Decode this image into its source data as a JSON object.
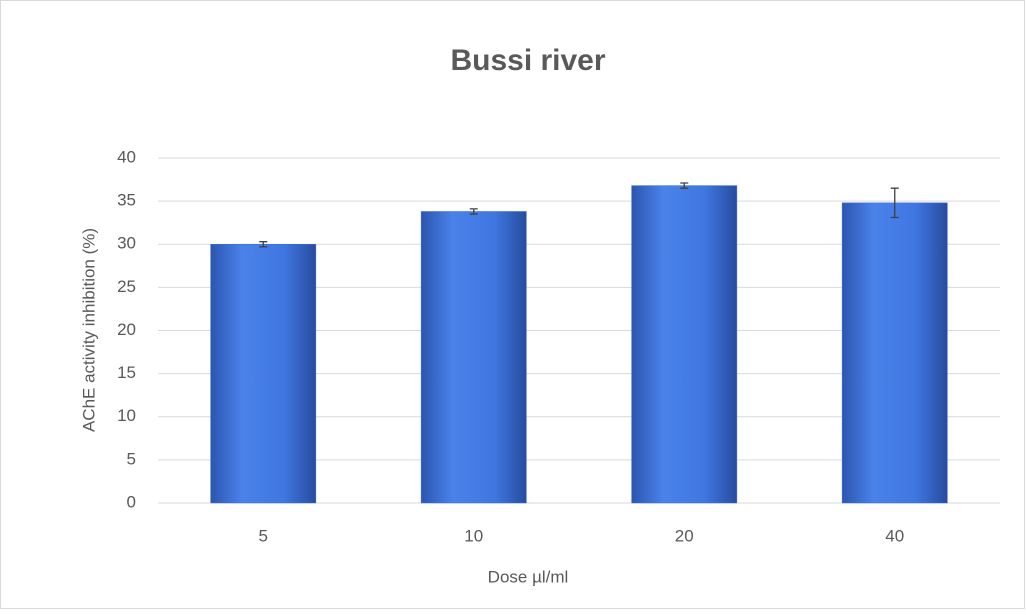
{
  "chart_data": {
    "type": "bar",
    "title": "Bussi river",
    "x_label": "Dose µl/ml",
    "y_label": "AChE activity inhibition (%)",
    "categories": [
      "5",
      "10",
      "20",
      "40"
    ],
    "values": [
      30.0,
      33.8,
      36.8,
      34.8
    ],
    "errors": [
      0.3,
      0.3,
      0.3,
      1.7
    ],
    "color": "#3a6fd8",
    "ylim": [
      0,
      40
    ],
    "yticks": [
      0,
      5,
      10,
      15,
      20,
      25,
      30,
      35,
      40
    ],
    "grid": true
  }
}
